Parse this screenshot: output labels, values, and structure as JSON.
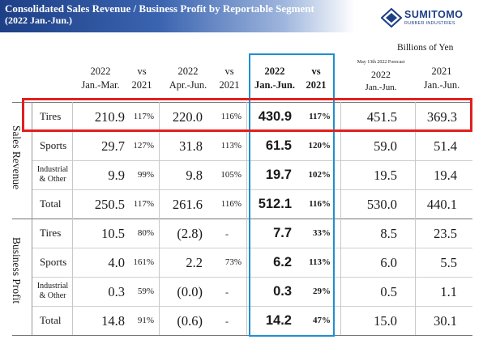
{
  "header": {
    "title_line1": "Consolidated Sales Revenue / Business Profit by Reportable Segment",
    "title_line2": "(2022 Jan.-Jun.)",
    "logo_name": "SUMITOMO",
    "logo_sub": "RUBBER INDUSTRIES",
    "unit": "Billions of Yen"
  },
  "columns": {
    "q1": {
      "line1": "2022",
      "line2": "Jan.-Mar."
    },
    "vs1": {
      "line1": "vs",
      "line2": "2021"
    },
    "q2": {
      "line1": "2022",
      "line2": "Apr.-Jun."
    },
    "vs2": {
      "line1": "vs",
      "line2": "2021"
    },
    "h1": {
      "line1": "2022",
      "line2": "Jan.-Jun."
    },
    "vs3": {
      "line1": "vs",
      "line2": "2021"
    },
    "forecast": {
      "note": "May 13th 2022 Forecast",
      "line1": "2022",
      "line2": "Jan.-Jun."
    },
    "prev": {
      "line1": "2021",
      "line2": "Jan.-Jun."
    }
  },
  "sections": {
    "sales": {
      "label": "Sales Revenue",
      "rows": [
        {
          "label": "Tires",
          "q1": "210.9",
          "vs1": "117%",
          "q2": "220.0",
          "vs2": "116%",
          "h1": "430.9",
          "vs3": "117%",
          "forecast": "451.5",
          "prev": "369.3"
        },
        {
          "label": "Sports",
          "q1": "29.7",
          "vs1": "127%",
          "q2": "31.8",
          "vs2": "113%",
          "h1": "61.5",
          "vs3": "120%",
          "forecast": "59.0",
          "prev": "51.4"
        },
        {
          "label": "Industrial\n& Other",
          "label_a": "Industrial",
          "label_b": "& Other",
          "q1": "9.9",
          "vs1": "99%",
          "q2": "9.8",
          "vs2": "105%",
          "h1": "19.7",
          "vs3": "102%",
          "forecast": "19.5",
          "prev": "19.4"
        },
        {
          "label": "Total",
          "q1": "250.5",
          "vs1": "117%",
          "q2": "261.6",
          "vs2": "116%",
          "h1": "512.1",
          "vs3": "116%",
          "forecast": "530.0",
          "prev": "440.1"
        }
      ]
    },
    "profit": {
      "label": "Business Profit",
      "rows": [
        {
          "label": "Tires",
          "q1": "10.5",
          "vs1": "80%",
          "q2": "(2.8)",
          "vs2": "-",
          "h1": "7.7",
          "vs3": "33%",
          "forecast": "8.5",
          "prev": "23.5"
        },
        {
          "label": "Sports",
          "q1": "4.0",
          "vs1": "161%",
          "q2": "2.2",
          "vs2": "73%",
          "h1": "6.2",
          "vs3": "113%",
          "forecast": "6.0",
          "prev": "5.5"
        },
        {
          "label_a": "Industrial",
          "label_b": "& Other",
          "q1": "0.3",
          "vs1": "59%",
          "q2": "(0.0)",
          "vs2": "-",
          "h1": "0.3",
          "vs3": "29%",
          "forecast": "0.5",
          "prev": "1.1"
        },
        {
          "label": "Total",
          "q1": "14.8",
          "vs1": "91%",
          "q2": "(0.6)",
          "vs2": "-",
          "h1": "14.2",
          "vs3": "47%",
          "forecast": "15.0",
          "prev": "30.1"
        }
      ]
    }
  },
  "colors": {
    "banner": "#1d3f86",
    "highlight_column": "#1f8fd0",
    "highlight_row": "#e0201e"
  }
}
